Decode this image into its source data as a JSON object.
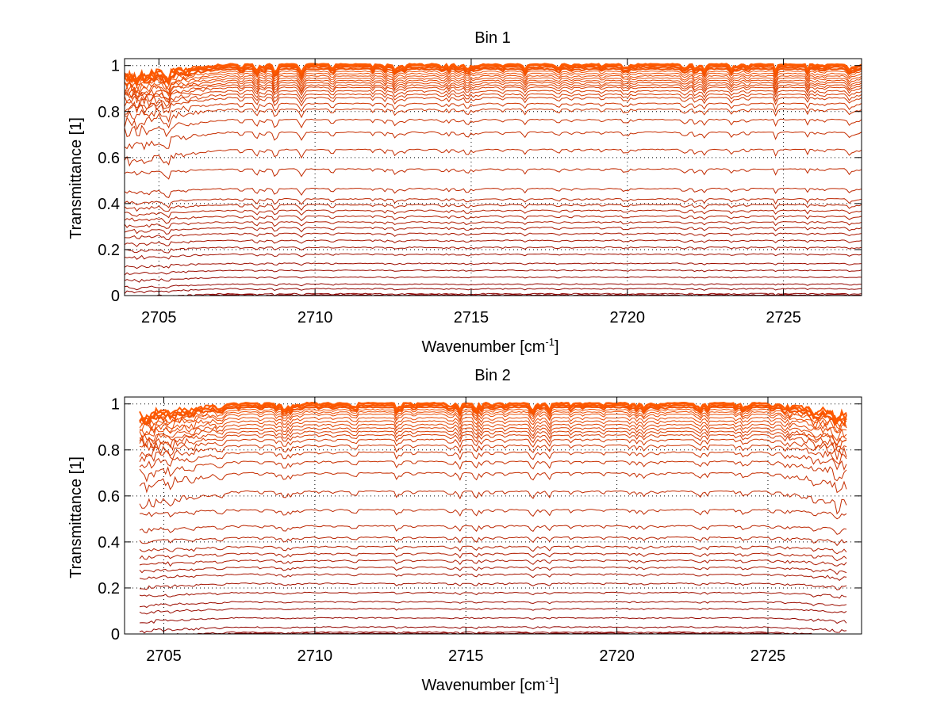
{
  "chart_data": [
    {
      "type": "line",
      "title": "Bin 1",
      "xlabel": "Wavenumber [cm",
      "xlabel_sup": "-1",
      "xlabel_end": "]",
      "ylabel": "Transmittance [1]",
      "xlim": [
        2703.9,
        2727.5
      ],
      "ylim": [
        0,
        1.03
      ],
      "xticks": [
        2705,
        2710,
        2715,
        2720,
        2725
      ],
      "yticks": [
        0,
        0.2,
        0.4,
        0.6,
        0.8,
        1
      ],
      "ytick_labels": [
        "0",
        "0.2",
        "0.4",
        "0.6",
        "0.8",
        "1"
      ],
      "grid": true,
      "series_color_start": "#8b0000",
      "series_color_end": "#ff5a00",
      "x_data_range": [
        2703.9,
        2727.5
      ],
      "baseline_levels": [
        0.003,
        0.008,
        0.03,
        0.05,
        0.08,
        0.11,
        0.14,
        0.18,
        0.21,
        0.24,
        0.27,
        0.295,
        0.32,
        0.345,
        0.37,
        0.395,
        0.42,
        0.465,
        0.55,
        0.635,
        0.71,
        0.765,
        0.81,
        0.835,
        0.86,
        0.875,
        0.89,
        0.905,
        0.915,
        0.925,
        0.935,
        0.945,
        0.955,
        0.965,
        0.975,
        0.985,
        0.993,
        1.0,
        1.003,
        1.006
      ]
    },
    {
      "type": "line",
      "title": "Bin 2",
      "xlabel": "Wavenumber [cm",
      "xlabel_sup": "-1",
      "xlabel_end": "]",
      "ylabel": "Transmittance [1]",
      "xlim": [
        2703.7,
        2728.1
      ],
      "ylim": [
        0,
        1.03
      ],
      "xticks": [
        2705,
        2710,
        2715,
        2720,
        2725
      ],
      "yticks": [
        0,
        0.2,
        0.4,
        0.6,
        0.8,
        1
      ],
      "ytick_labels": [
        "0",
        "0.2",
        "0.4",
        "0.6",
        "0.8",
        "1"
      ],
      "grid": true,
      "series_color_start": "#8b0000",
      "series_color_end": "#ff5a00",
      "x_data_range": [
        2704.2,
        2727.6
      ],
      "baseline_levels": [
        0.003,
        0.008,
        0.03,
        0.07,
        0.11,
        0.14,
        0.18,
        0.22,
        0.26,
        0.29,
        0.32,
        0.35,
        0.38,
        0.42,
        0.47,
        0.54,
        0.62,
        0.7,
        0.75,
        0.79,
        0.82,
        0.845,
        0.865,
        0.88,
        0.895,
        0.91,
        0.925,
        0.94,
        0.955,
        0.965,
        0.975,
        0.985,
        0.993,
        1.0,
        1.004
      ]
    }
  ]
}
